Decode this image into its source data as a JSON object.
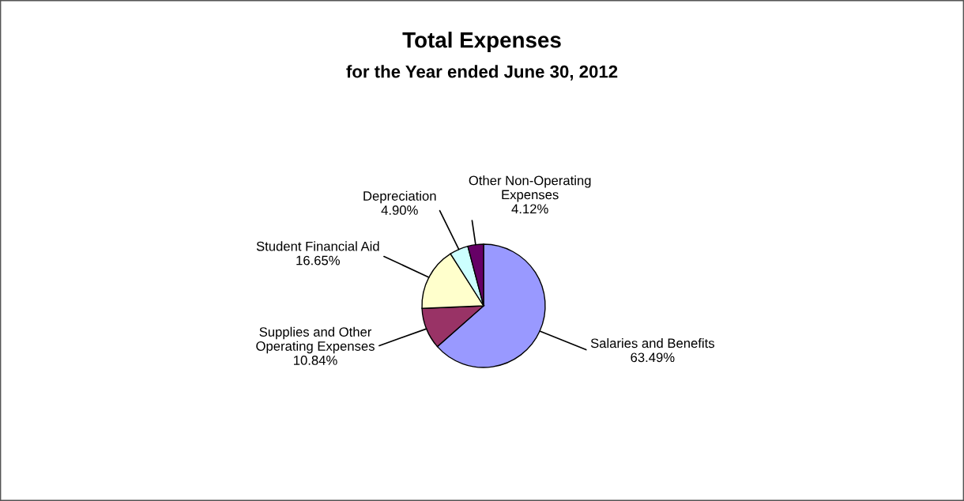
{
  "chart_data": {
    "type": "pie",
    "title": "Total Expenses",
    "subtitle": "for the Year ended June 30, 2012",
    "categories": [
      "Salaries and Benefits",
      "Supplies and Other\nOperating Expenses",
      "Student Financial Aid",
      "Depreciation",
      "Other Non-Operating\nExpenses"
    ],
    "values": [
      63.49,
      10.84,
      16.65,
      4.9,
      4.12
    ],
    "value_labels": [
      "63.49%",
      "10.84%",
      "16.65%",
      "4.90%",
      "4.12%"
    ],
    "colors": [
      "#9999ff",
      "#993366",
      "#ffffcc",
      "#ccffff",
      "#660066"
    ],
    "legend": false
  }
}
